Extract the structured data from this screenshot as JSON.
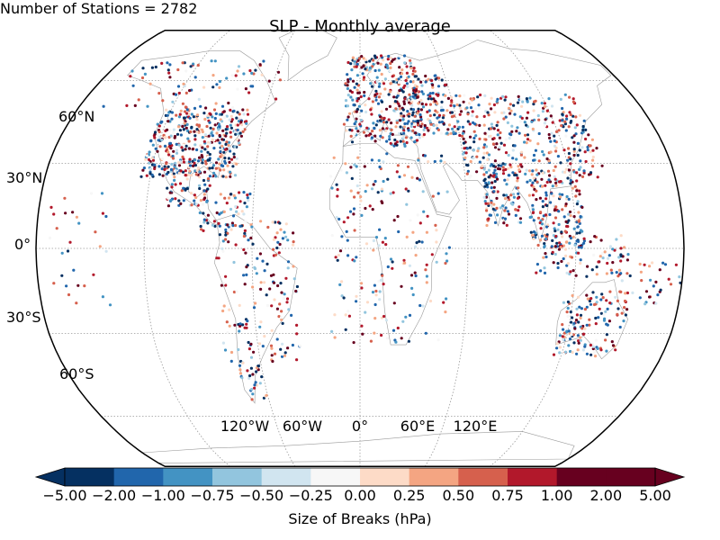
{
  "subtitle": "Number of Stations = 2782",
  "title": "SLP - Monthly average",
  "latitude_labels": [
    "60°N",
    "30°N",
    "0°",
    "30°S",
    "60°S"
  ],
  "longitude_labels": [
    "120°W",
    "60°W",
    "0°",
    "60°E",
    "120°E"
  ],
  "colorbar": {
    "label": "Size of Breaks (hPa)",
    "ticks": [
      "−5.00",
      "−2.00",
      "−1.00",
      "−0.75",
      "−0.50",
      "−0.25",
      "0.00",
      "0.25",
      "0.50",
      "0.75",
      "1.00",
      "2.00",
      "5.00"
    ],
    "colors": [
      "#053061",
      "#2166ac",
      "#4393c3",
      "#92c5de",
      "#d1e5f0",
      "#f7f7f7",
      "#fddbc7",
      "#f4a582",
      "#d6604d",
      "#b2182b",
      "#67001f",
      "#67001f"
    ],
    "extend": "both"
  },
  "map": {
    "projection": "robinson",
    "graticule": "dotted",
    "ocean_color": "#ffffff",
    "coastline_color": "#888888"
  }
}
